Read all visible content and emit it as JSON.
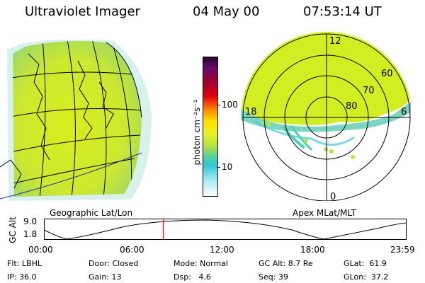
{
  "header": {
    "title": "Ultraviolet Imager",
    "date": "04 May 00",
    "time": "07:53:14 UT"
  },
  "colorbar": {
    "unit_label": "photon cm⁻²s⁻¹",
    "ticks": [
      "100",
      "10"
    ]
  },
  "left_panel": {
    "caption": "Geographic Lat/Lon"
  },
  "right_panel": {
    "caption": "Apex MLat/MLT",
    "mlt_labels": {
      "top": "12",
      "left": "18",
      "right": "6",
      "bottom": "0"
    },
    "lat_labels": [
      "60",
      "70",
      "80"
    ]
  },
  "timeline": {
    "ylabel": "GC Alt",
    "yticks": [
      "9.0",
      "1.8"
    ],
    "xticks": [
      "00:00",
      "06:00",
      "12:00",
      "18:00",
      "23:59"
    ],
    "current_fraction": 0.329
  },
  "status": {
    "flt": "Flt: LBHL",
    "ip": "IP: 36.0",
    "door": "Door: Closed",
    "gain": "Gain: 13",
    "mode": "Mode: Normal",
    "dsp": "Dsp:   4.6",
    "gcalt": "GC Alt: 8.7 Re",
    "seq": "Seq: 39",
    "glat": "GLat:  61.9",
    "glon": "GLon:  37.2"
  },
  "colors": {
    "aurora": "#d2ee22",
    "background": "#ffffff",
    "marker": "#ff0000"
  }
}
